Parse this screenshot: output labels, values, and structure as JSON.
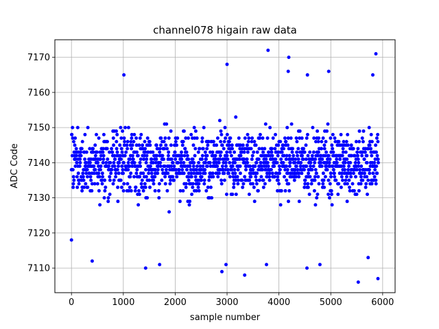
{
  "chart_data": {
    "type": "scatter",
    "title": "channel078 higain raw data",
    "xlabel": "sample number",
    "ylabel": "ADC Code",
    "xlim": [
      -320,
      6240
    ],
    "ylim": [
      7103,
      7175
    ],
    "xticks": [
      0,
      1000,
      2000,
      3000,
      4000,
      5000,
      6000
    ],
    "yticks": [
      7110,
      7120,
      7130,
      7140,
      7150,
      7160,
      7170
    ],
    "xtick_labels": [
      "0",
      "1000",
      "2000",
      "3000",
      "4000",
      "5000",
      "6000"
    ],
    "ytick_labels": [
      "7110",
      "7120",
      "7130",
      "7140",
      "7150",
      "7160",
      "7170"
    ],
    "grid": true,
    "marker_color": "#0000ff",
    "sample_count": 5920,
    "value_range": [
      7106,
      7172
    ],
    "mean": 7140,
    "dense_band": [
      7123,
      7157
    ],
    "outliers": [
      {
        "x": 3790,
        "y": 7172
      },
      {
        "x": 5870,
        "y": 7171
      },
      {
        "x": 4190,
        "y": 7170
      },
      {
        "x": 3000,
        "y": 7168
      },
      {
        "x": 4180,
        "y": 7166
      },
      {
        "x": 4960,
        "y": 7166
      },
      {
        "x": 1010,
        "y": 7165
      },
      {
        "x": 5810,
        "y": 7165
      },
      {
        "x": 4550,
        "y": 7165
      },
      {
        "x": 2900,
        "y": 7109
      },
      {
        "x": 2980,
        "y": 7111
      },
      {
        "x": 3340,
        "y": 7108
      },
      {
        "x": 3760,
        "y": 7111
      },
      {
        "x": 4540,
        "y": 7110
      },
      {
        "x": 1430,
        "y": 7110
      },
      {
        "x": 400,
        "y": 7112
      },
      {
        "x": 4790,
        "y": 7111
      },
      {
        "x": 5530,
        "y": 7106
      },
      {
        "x": 5910,
        "y": 7107
      },
      {
        "x": 5720,
        "y": 7113
      },
      {
        "x": 0,
        "y": 7118
      },
      {
        "x": 1700,
        "y": 7111
      }
    ]
  }
}
